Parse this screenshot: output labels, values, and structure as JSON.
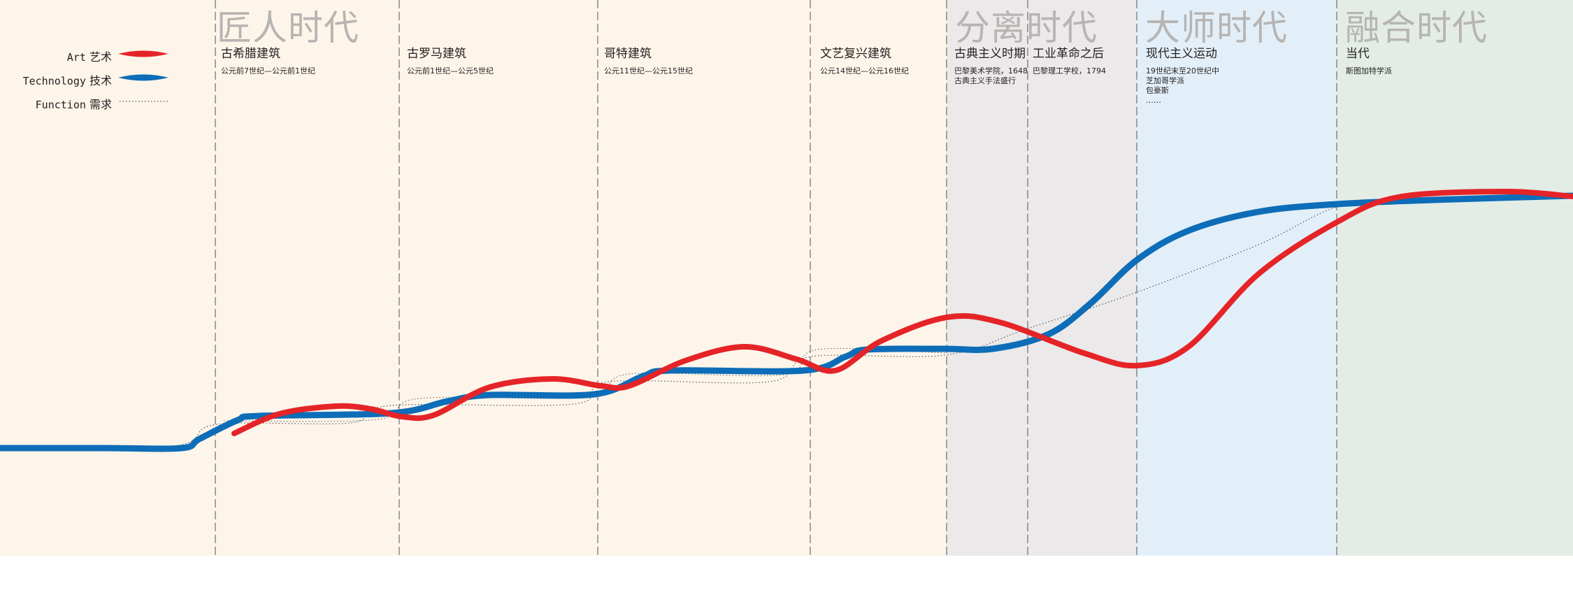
{
  "eras": [
    {
      "label": "匠人时代",
      "bg": "#fdf5ea"
    },
    {
      "label": "分离时代",
      "bg": "#ebe9e9"
    },
    {
      "label": "大师时代",
      "bg": "#e3eff8"
    },
    {
      "label": "融合时代",
      "bg": "#e3ede5"
    }
  ],
  "periods": [
    {
      "title": "古希腊建筑",
      "subtitle": [
        "公元前7世纪—公元前1世纪"
      ]
    },
    {
      "title": "古罗马建筑",
      "subtitle": [
        "公元前1世纪—公元5世纪"
      ]
    },
    {
      "title": "哥特建筑",
      "subtitle": [
        "公元11世纪—公元15世纪"
      ]
    },
    {
      "title": "文艺复兴建筑",
      "subtitle": [
        "公元14世纪—公元16世纪"
      ]
    },
    {
      "title": "古典主义时期",
      "subtitle": [
        "巴黎美术学院，1648",
        "古典主义手法盛行"
      ]
    },
    {
      "title": "工业革命之后",
      "subtitle": [
        "巴黎理工学校，1794"
      ]
    },
    {
      "title": "现代主义运动",
      "subtitle": [
        "19世纪末至20世纪中",
        "芝加哥学派",
        "包豪斯",
        "……"
      ]
    },
    {
      "title": "当代",
      "subtitle": [
        "斯图加特学派"
      ]
    }
  ],
  "legend": [
    {
      "en": "Art",
      "zh": "艺术",
      "color": "#e52428",
      "style": "lens"
    },
    {
      "en": "Technology",
      "zh": "技术",
      "color": "#0d6db8",
      "style": "lens"
    },
    {
      "en": "Function",
      "zh": "需求",
      "color": "#555555",
      "style": "dotted"
    }
  ],
  "colors": {
    "art": "#e52428",
    "technology": "#0d6db8",
    "function": "#555555",
    "divider": "#777777"
  }
}
